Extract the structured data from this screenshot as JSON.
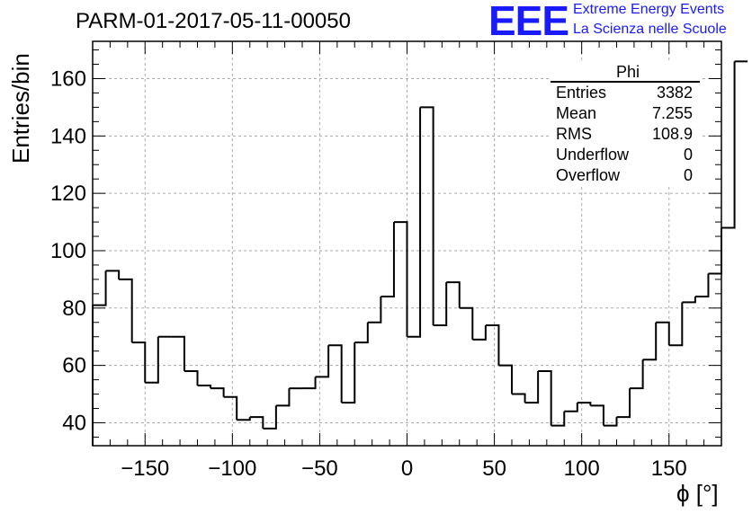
{
  "title": "PARM-01-2017-05-11-00050",
  "logo": {
    "letters": "EEE",
    "line1": "Extreme Energy Events",
    "line2": "La Scienza nelle Scuole",
    "color": "#1a1aff"
  },
  "stats": {
    "name": "Phi",
    "rows": [
      {
        "label": "Entries",
        "value": "3382"
      },
      {
        "label": "Mean",
        "value": "7.255"
      },
      {
        "label": "RMS",
        "value": "108.9"
      },
      {
        "label": "Underflow",
        "value": "0"
      },
      {
        "label": "Overflow",
        "value": "0"
      }
    ]
  },
  "chart_data": {
    "type": "histogram",
    "title": "PARM-01-2017-05-11-00050",
    "xlabel": "ϕ [°]",
    "ylabel": "Entries/bin",
    "xlim": [
      -180,
      180
    ],
    "ylim": [
      32,
      173
    ],
    "grid": true,
    "bin_width": 7.5,
    "x_ticks": [
      -150,
      -100,
      -50,
      0,
      50,
      100,
      150
    ],
    "y_ticks": [
      40,
      60,
      80,
      100,
      120,
      140,
      160
    ],
    "values": [
      81,
      93,
      90,
      68,
      54,
      70,
      70,
      58,
      53,
      52,
      49,
      41,
      42,
      38,
      46,
      52,
      52,
      56,
      67,
      47,
      68,
      75,
      84,
      110,
      70,
      150,
      74,
      89,
      80,
      69,
      74,
      60,
      50,
      47,
      58,
      39,
      44,
      47,
      46,
      39,
      42,
      52,
      62,
      75,
      67,
      82,
      84,
      92,
      108,
      166
    ]
  }
}
